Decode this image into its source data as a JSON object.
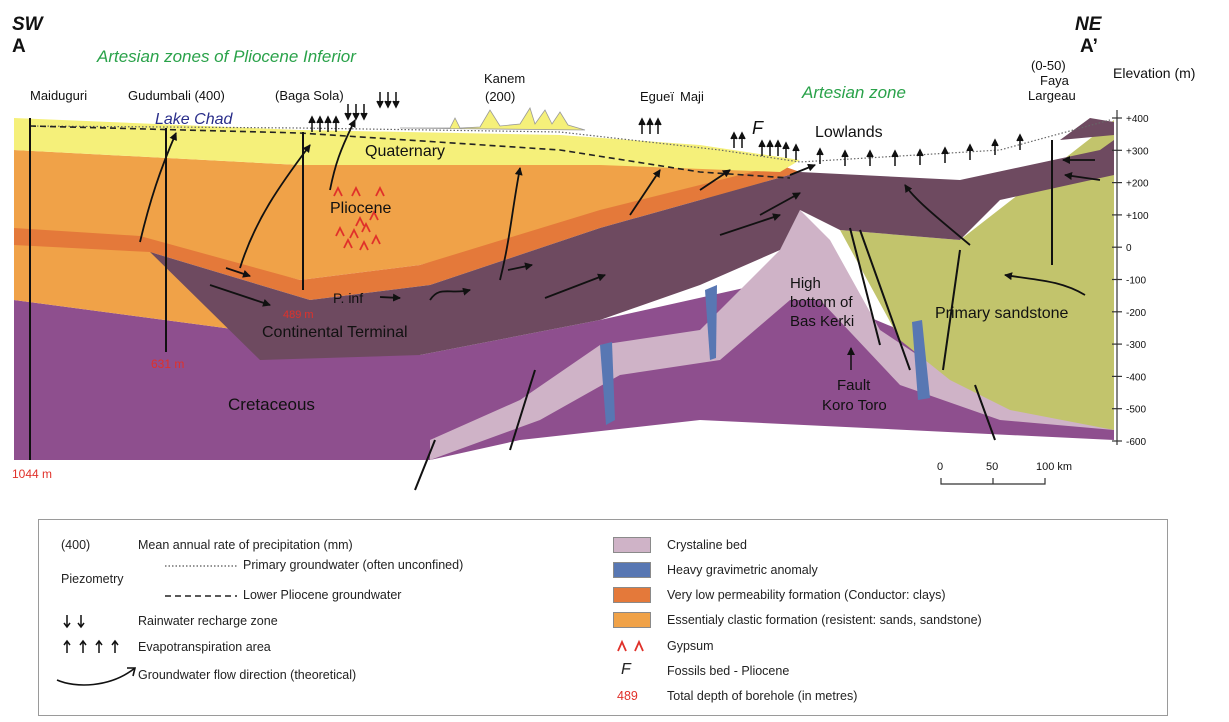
{
  "corner": {
    "left_dir": "SW",
    "left_point": "A",
    "right_dir": "NE",
    "right_point": "A’"
  },
  "headings": {
    "artesian_pliocene": "Artesian zones of Pliocene Inferior",
    "artesian_zone": "Artesian zone",
    "lake_chad": "Lake Chad",
    "lowlands": "Lowlands",
    "fossil_mark": "F"
  },
  "places": {
    "maiduguri": "Maiduguri",
    "gudumbali": "Gudumbali (400)",
    "baga_sola": "(Baga Sola)",
    "kanem_name": "Kanem",
    "kanem_rain": "(200)",
    "eguei": "Egueï",
    "maji": "Maji",
    "faya_rain": "(0-50)",
    "faya_name": "Faya",
    "faya_name2": "Largeau"
  },
  "formations": {
    "quaternary": "Quaternary",
    "pliocene": "Pliocene",
    "p_inf": "P. inf",
    "continental_terminal": "Continental Terminal",
    "cretaceous": "Cretaceous",
    "primary_sandstone": "Primary sandstone",
    "high_bottom_1": "High",
    "high_bottom_2": "bottom of",
    "high_bottom_3": "Bas Kerki",
    "fault_1": "Fault",
    "fault_2": "Koro Toro"
  },
  "depths": {
    "d1044": "1044 m",
    "d631": "631 m",
    "d489": "489 m"
  },
  "elevation": {
    "title": "Elevation (m)",
    "ticks": [
      "+400",
      "+300",
      "+200",
      "+100",
      "0",
      "-100",
      "-200",
      "-300",
      "-400",
      "-500",
      "-600"
    ]
  },
  "scale_bar": {
    "labels": [
      "0",
      "50",
      "100 km"
    ]
  },
  "colors": {
    "quaternary": "#f5f07a",
    "clastic": "#f0a248",
    "low_perm": "#e4793a",
    "continental": "#6e4a60",
    "cretaceous": "#8e4f8e",
    "crystalline": "#cfb3c7",
    "primary_sandstone": "#c2c46c",
    "gravimetric": "#5877b3",
    "arrow": "#111111",
    "gypsum": "#e0312a",
    "depth_text": "#e0312a",
    "artesian_text": "#2aa24a",
    "lake_text": "#2a2e8a"
  },
  "legend": {
    "precip_code": "(400)",
    "precip_text": "Mean annual rate of precipitation (mm)",
    "piezometry": "Piezometry",
    "primary_gw": "Primary groundwater (often unconfined)",
    "lower_gw": "Lower Pliocene groundwater",
    "recharge": "Rainwater recharge zone",
    "evapo": "Evapotranspiration area",
    "flow": "Groundwater flow direction (theoretical)",
    "crystaline": "Crystaline bed",
    "gravimetric": "Heavy gravimetric anomaly",
    "low_perm": "Very low permeability formation (Conductor: clays)",
    "clastic": "Essentialy clastic formation (resistent: sands, sandstone)",
    "gypsum": "Gypsum",
    "fossil_code": "F",
    "fossil": "Fossils bed - Pliocene",
    "depth_code": "489",
    "depth": "Total depth of borehole (in metres)"
  }
}
